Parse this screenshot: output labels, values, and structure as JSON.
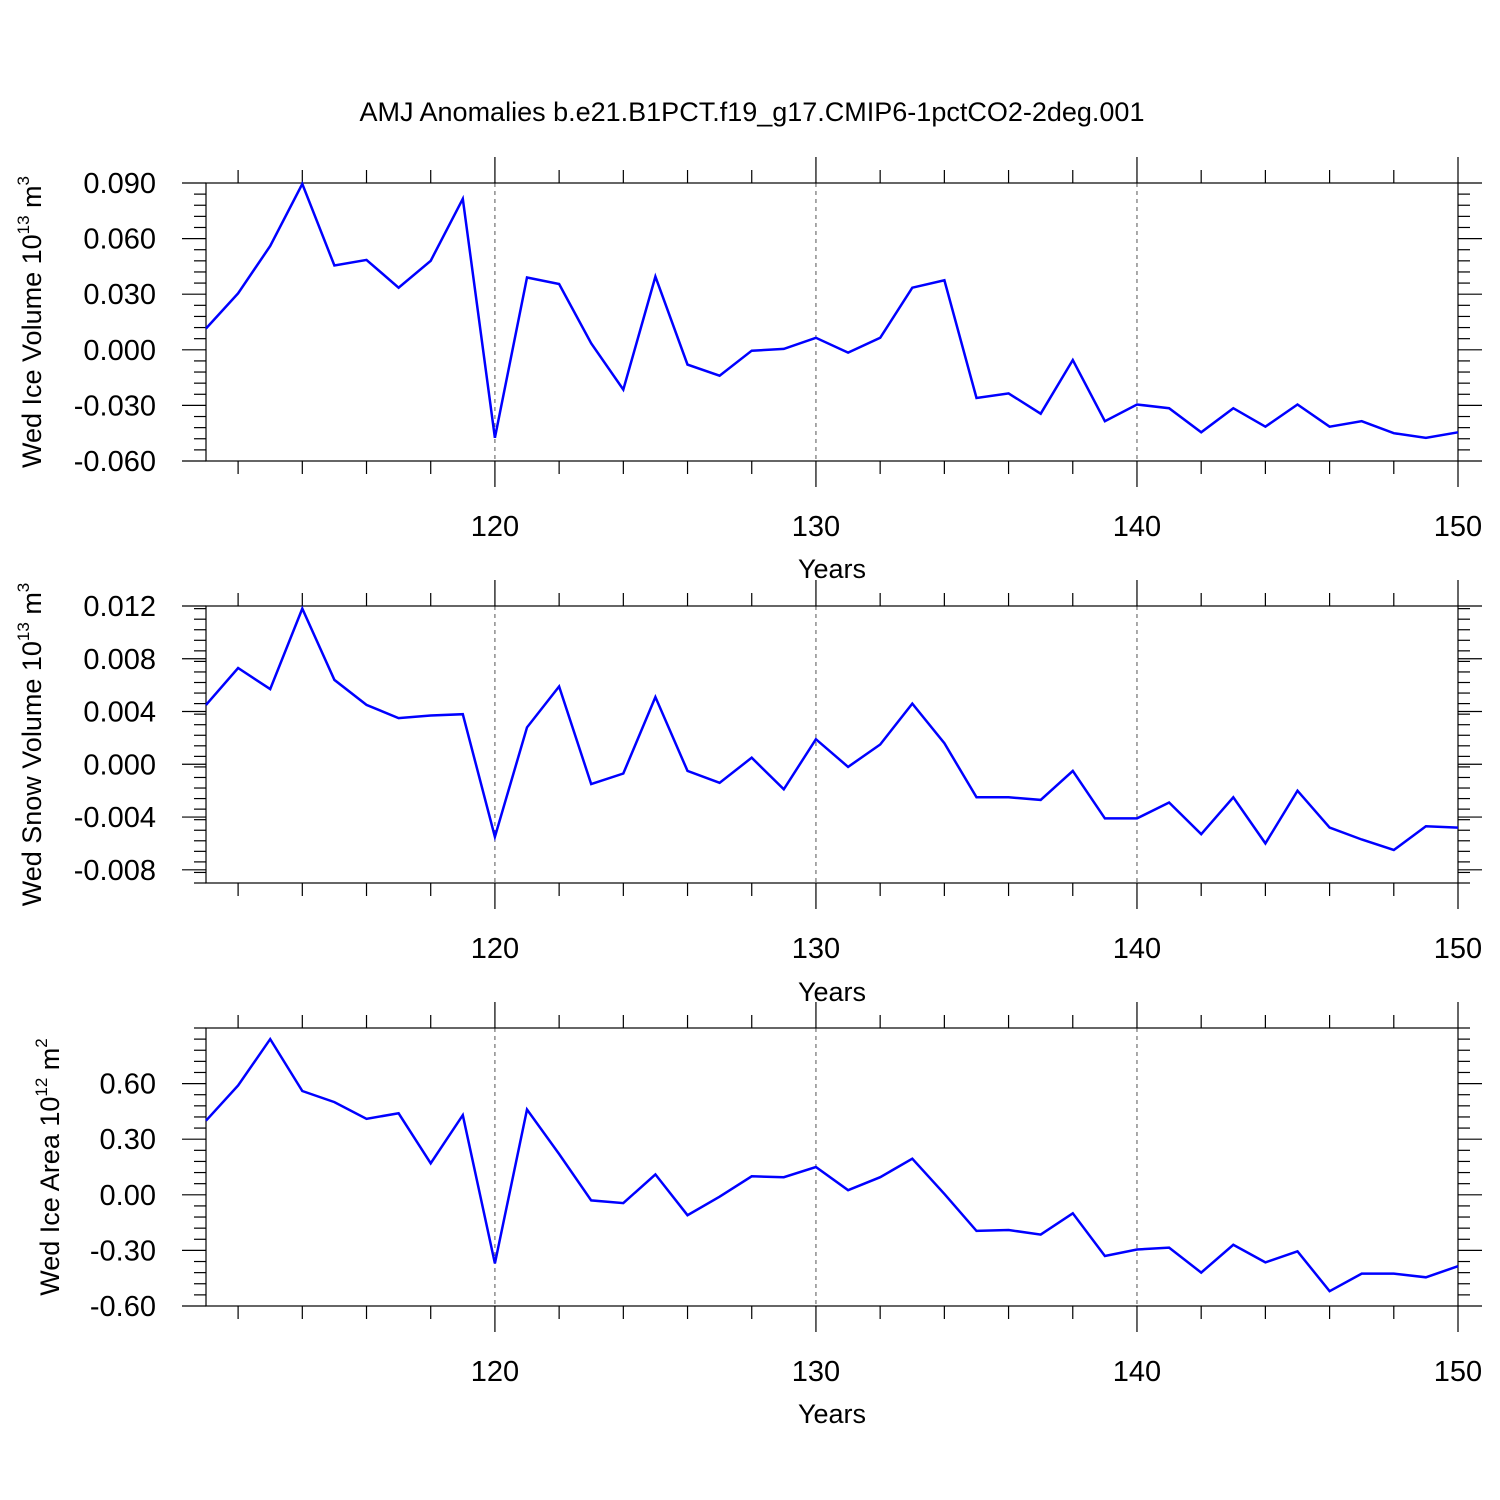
{
  "title": "AMJ Anomalies b.e21.B1PCT.f19_g17.CMIP6-1pctCO2-2deg.001",
  "line_color": "#0000ff",
  "chart_data": [
    {
      "type": "line",
      "xlabel": "Years",
      "ylabel": {
        "text": "Wed Ice Volume 10",
        "sup": "13",
        "unit": " m",
        "unit_sup": "3"
      },
      "xlim": [
        111,
        150
      ],
      "ylim": [
        -0.06,
        0.09
      ],
      "x_ticks": [
        120,
        130,
        140,
        150
      ],
      "y_ticks": [
        -0.06,
        -0.03,
        0.0,
        0.03,
        0.06,
        0.09
      ],
      "y_tick_labels": [
        "-0.060",
        "-0.030",
        "0.000",
        "0.030",
        "0.060",
        "0.090"
      ],
      "grid": "dashed vertical at major x ticks",
      "series": [
        {
          "x": [
            111,
            112,
            113,
            114,
            115,
            116,
            117,
            118,
            119,
            120,
            121,
            122,
            123,
            124,
            125,
            126,
            127,
            128,
            129,
            130,
            131,
            132,
            133,
            134,
            135,
            136,
            137,
            138,
            139,
            140,
            141,
            142,
            143,
            144,
            145,
            146,
            147,
            148,
            149,
            150
          ],
          "values": [
            0.0115,
            0.0305,
            0.056,
            0.0895,
            0.0455,
            0.0485,
            0.0335,
            0.048,
            0.0815,
            -0.0475,
            0.039,
            0.0355,
            0.0035,
            -0.0215,
            0.0395,
            -0.008,
            -0.014,
            -0.0005,
            0.0005,
            0.0065,
            -0.0015,
            0.0065,
            0.0335,
            0.0375,
            -0.026,
            -0.0235,
            -0.0345,
            -0.0055,
            -0.0385,
            -0.0295,
            -0.0315,
            -0.0445,
            -0.0315,
            -0.0415,
            -0.0295,
            -0.0415,
            -0.0385,
            -0.045,
            -0.0475,
            -0.0445
          ]
        }
      ]
    },
    {
      "type": "line",
      "xlabel": "Years",
      "ylabel": {
        "text": "Wed Snow Volume 10",
        "sup": "13",
        "unit": " m",
        "unit_sup": "3"
      },
      "xlim": [
        111,
        150
      ],
      "ylim": [
        -0.009,
        0.012
      ],
      "x_ticks": [
        120,
        130,
        140,
        150
      ],
      "y_ticks": [
        -0.008,
        -0.004,
        0.0,
        0.004,
        0.008,
        0.012
      ],
      "y_tick_labels": [
        "-0.008",
        "-0.004",
        "0.000",
        "0.004",
        "0.008",
        "0.012"
      ],
      "grid": "dashed vertical at major x ticks",
      "series": [
        {
          "x": [
            111,
            112,
            113,
            114,
            115,
            116,
            117,
            118,
            119,
            120,
            121,
            122,
            123,
            124,
            125,
            126,
            127,
            128,
            129,
            130,
            131,
            132,
            133,
            134,
            135,
            136,
            137,
            138,
            139,
            140,
            141,
            142,
            143,
            144,
            145,
            146,
            147,
            148,
            149,
            150
          ],
          "values": [
            0.0045,
            0.0073,
            0.0057,
            0.0118,
            0.0064,
            0.0045,
            0.0035,
            0.0037,
            0.0038,
            -0.0055,
            0.0028,
            0.0059,
            -0.0015,
            -0.0007,
            0.0051,
            -0.0005,
            -0.0014,
            0.0005,
            -0.0019,
            0.0019,
            -0.0002,
            0.0015,
            0.0046,
            0.0016,
            -0.0025,
            -0.0025,
            -0.0027,
            -0.0005,
            -0.0041,
            -0.0041,
            -0.0029,
            -0.0053,
            -0.0025,
            -0.006,
            -0.002,
            -0.0048,
            -0.0057,
            -0.0065,
            -0.0047,
            -0.0048
          ]
        }
      ]
    },
    {
      "type": "line",
      "xlabel": "Years",
      "ylabel": {
        "text": "Wed Ice Area 10",
        "sup": "12",
        "unit": " m",
        "unit_sup": "2"
      },
      "xlim": [
        111,
        150
      ],
      "ylim": [
        -0.6,
        0.9
      ],
      "x_ticks": [
        120,
        130,
        140,
        150
      ],
      "y_ticks": [
        -0.6,
        -0.3,
        0.0,
        0.3,
        0.6
      ],
      "y_tick_labels": [
        "-0.60",
        "-0.30",
        "0.00",
        "0.30",
        "0.60"
      ],
      "grid": "dashed vertical at major x ticks",
      "series": [
        {
          "x": [
            111,
            112,
            113,
            114,
            115,
            116,
            117,
            118,
            119,
            120,
            121,
            122,
            123,
            124,
            125,
            126,
            127,
            128,
            129,
            130,
            131,
            132,
            133,
            134,
            135,
            136,
            137,
            138,
            139,
            140,
            141,
            142,
            143,
            144,
            145,
            146,
            147,
            148,
            149,
            150
          ],
          "values": [
            0.4,
            0.59,
            0.84,
            0.56,
            0.5,
            0.41,
            0.44,
            0.17,
            0.43,
            -0.37,
            0.46,
            0.22,
            -0.03,
            -0.045,
            0.11,
            -0.11,
            -0.01,
            0.1,
            0.095,
            0.15,
            0.025,
            0.095,
            0.195,
            0.005,
            -0.195,
            -0.19,
            -0.215,
            -0.1,
            -0.33,
            -0.295,
            -0.285,
            -0.42,
            -0.27,
            -0.365,
            -0.305,
            -0.52,
            -0.425,
            -0.425,
            -0.445,
            -0.385
          ]
        }
      ]
    }
  ]
}
